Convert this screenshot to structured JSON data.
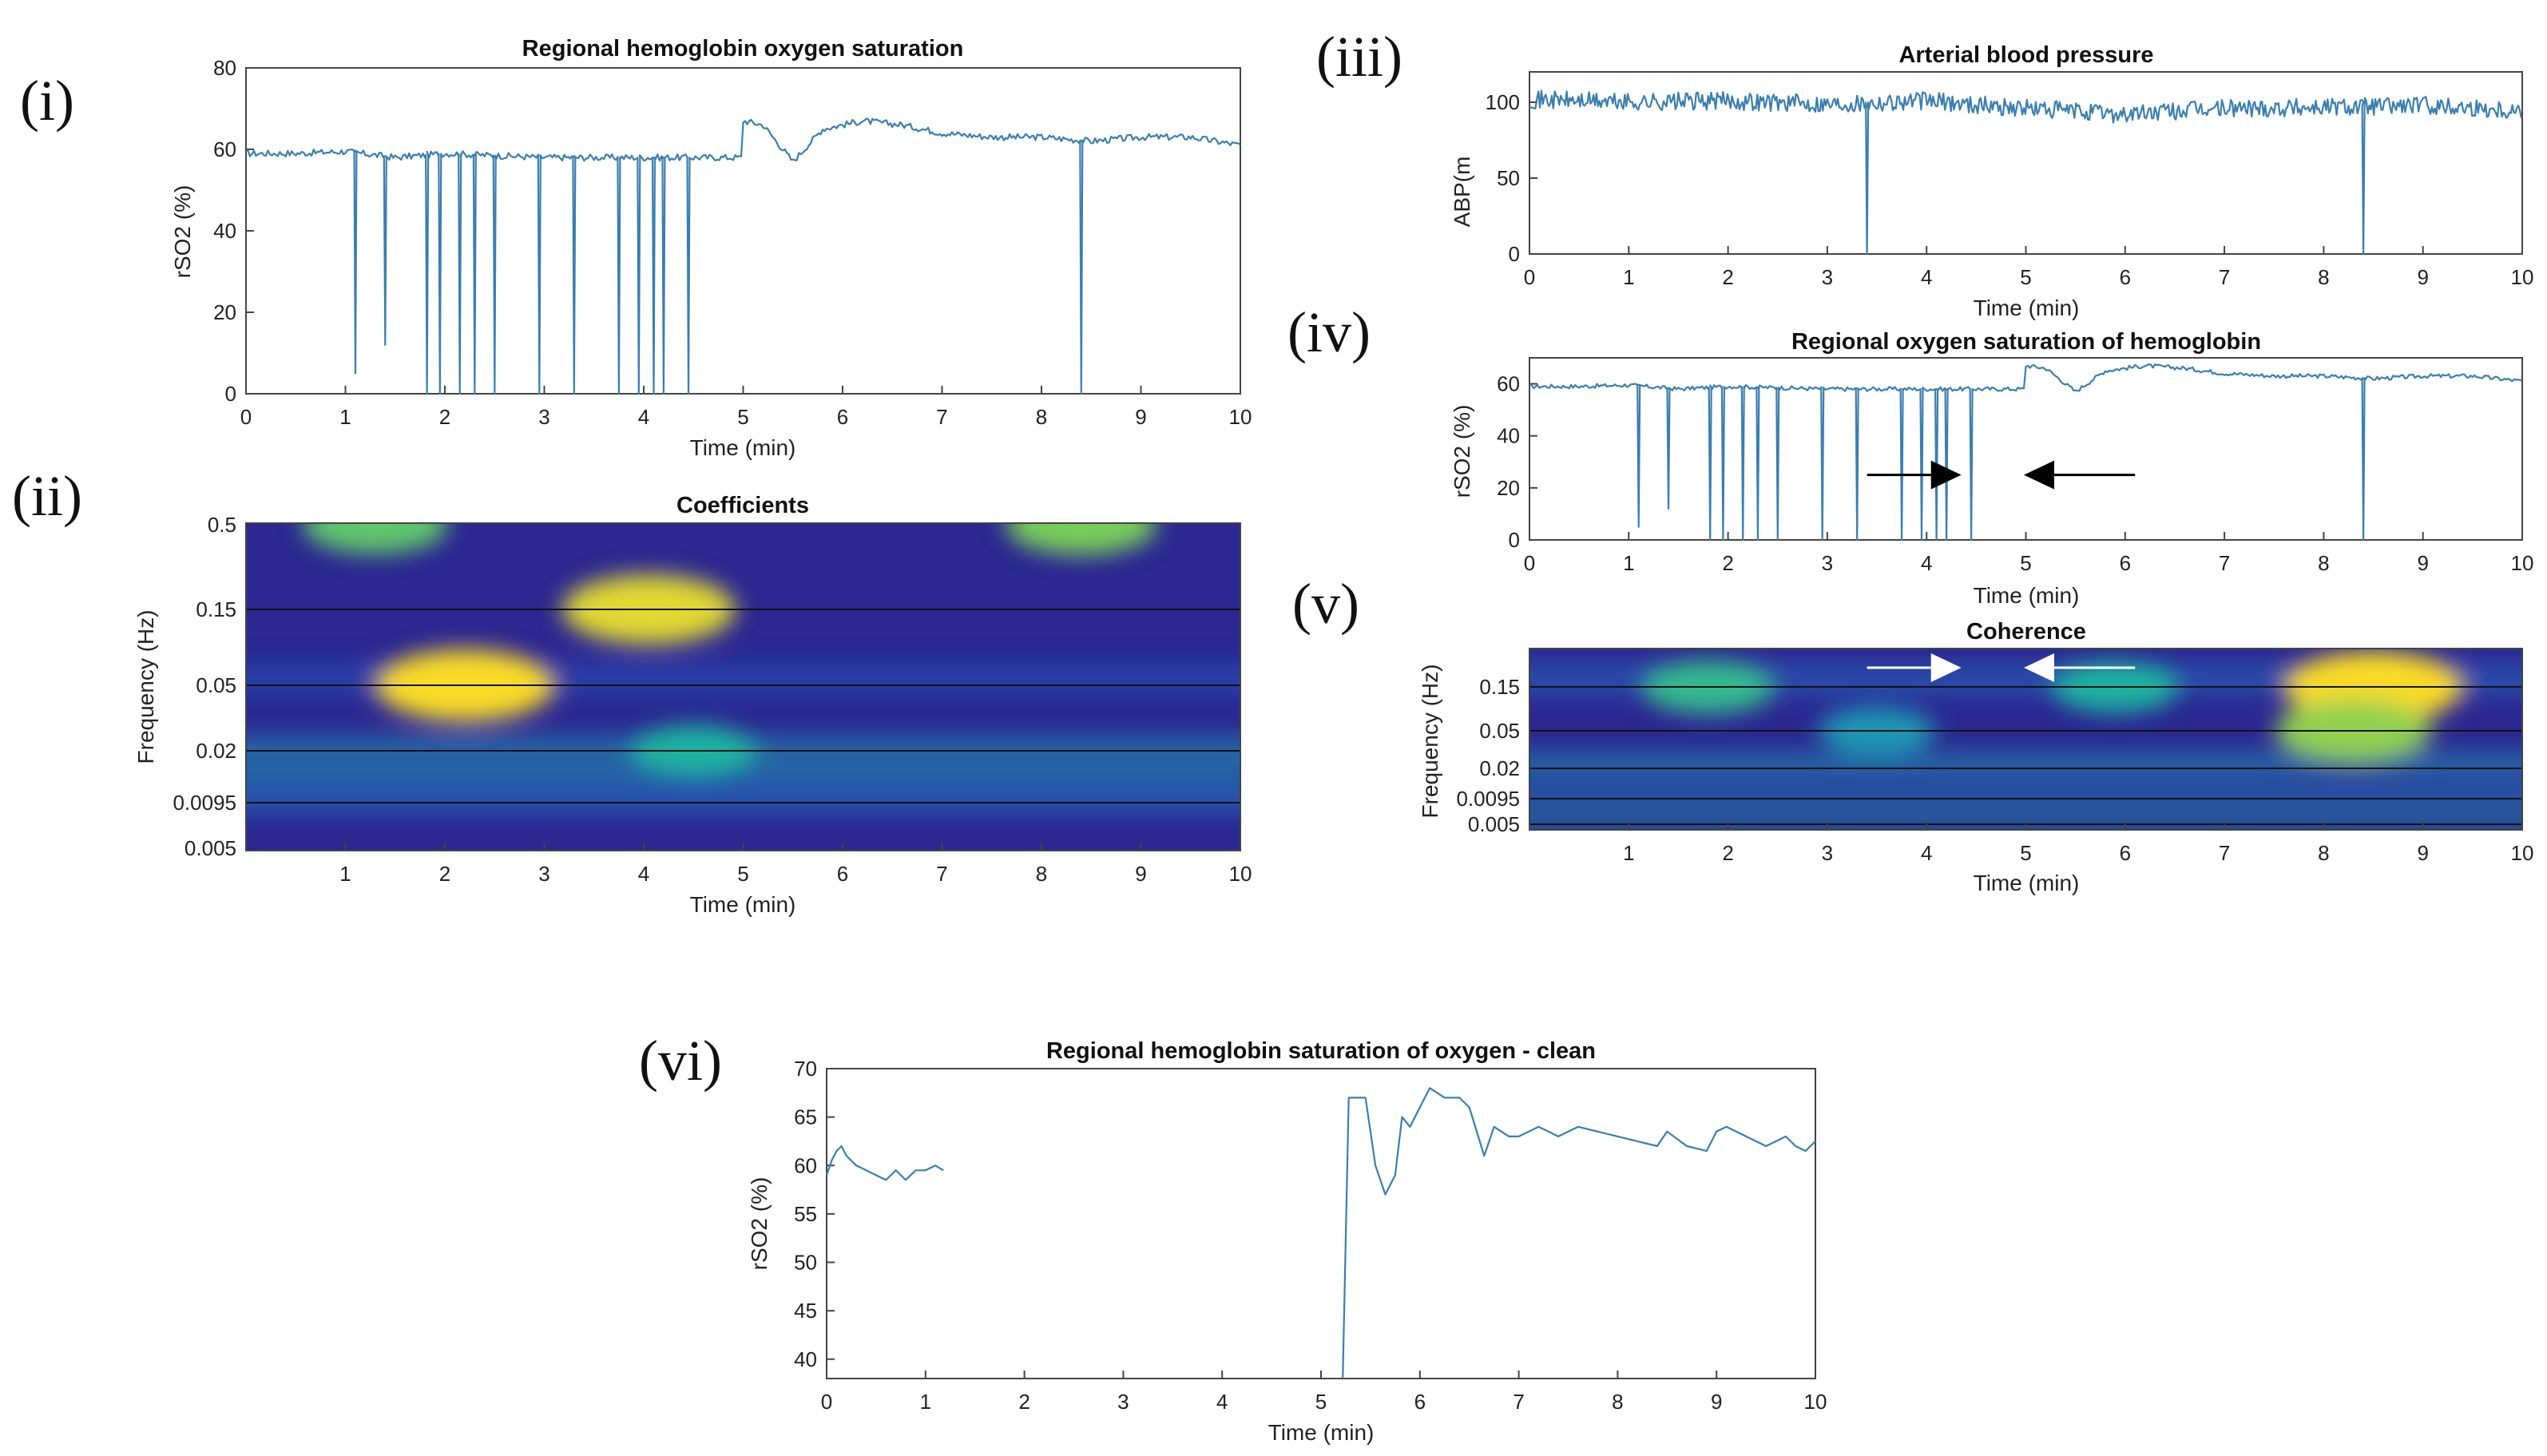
{
  "panel_labels": [
    "(i)",
    "(ii)",
    "(iii)",
    "(iv)",
    "(v)",
    "(vi)"
  ],
  "colors": {
    "line": "#3a7fb0",
    "heat_low": "#2c1e8f",
    "heat_mid": "#21b38a",
    "heat_high": "#f7dd2a"
  },
  "chart_data": [
    {
      "id": "p1",
      "type": "line",
      "title": "Regional hemoglobin oxygen saturation",
      "xlabel": "Time (min)",
      "ylabel": "rSO2 (%)",
      "xlim": [
        0,
        10
      ],
      "ylim": [
        0,
        80
      ],
      "xticks": [
        0,
        1,
        2,
        3,
        4,
        5,
        6,
        7,
        8,
        9,
        10
      ],
      "yticks": [
        0,
        20,
        40,
        60,
        80
      ],
      "series": [
        {
          "name": "rSO2",
          "baseline": [
            [
              0,
              59
            ],
            [
              0.5,
              59
            ],
            [
              1,
              59.5
            ],
            [
              1.5,
              58
            ],
            [
              2,
              59
            ],
            [
              3,
              58
            ],
            [
              4,
              58
            ],
            [
              4.5,
              58
            ],
            [
              4.98,
              58
            ],
            [
              5.0,
              67
            ],
            [
              5.2,
              66
            ],
            [
              5.4,
              60
            ],
            [
              5.5,
              57
            ],
            [
              5.8,
              65
            ],
            [
              6.2,
              67
            ],
            [
              6.6,
              66
            ],
            [
              7,
              64
            ],
            [
              7.5,
              63
            ],
            [
              8,
              63
            ],
            [
              8.5,
              62
            ],
            [
              9,
              63
            ],
            [
              9.5,
              63
            ],
            [
              10,
              61
            ]
          ],
          "dips": [
            [
              1.1,
              5
            ],
            [
              1.4,
              12
            ],
            [
              1.82,
              0
            ],
            [
              1.95,
              0
            ],
            [
              2.15,
              0
            ],
            [
              2.3,
              0
            ],
            [
              2.5,
              0
            ],
            [
              2.95,
              0
            ],
            [
              3.3,
              0
            ],
            [
              3.75,
              0
            ],
            [
              3.95,
              0
            ],
            [
              4.1,
              0
            ],
            [
              4.2,
              0
            ],
            [
              4.45,
              0
            ],
            [
              8.4,
              0
            ]
          ]
        }
      ]
    },
    {
      "id": "p2",
      "type": "heatmap",
      "title": "Coefficients",
      "xlabel": "Time (min)",
      "ylabel": "Frequency (Hz)",
      "xlim": [
        0,
        10
      ],
      "xticks": [
        1,
        2,
        3,
        4,
        5,
        6,
        7,
        8,
        9,
        10
      ],
      "yticks": [
        "0.5",
        "0.15",
        "0.05",
        "0.02",
        "0.0095",
        "0.005"
      ],
      "hot_spots": [
        {
          "t": 2.2,
          "f": "0.05",
          "v": 1.0
        },
        {
          "t": 4.05,
          "f": "0.15",
          "v": 0.95
        },
        {
          "t": 1.3,
          "f": "0.5",
          "v": 0.7
        },
        {
          "t": 8.4,
          "f": "0.5",
          "v": 0.75
        },
        {
          "t": 4.5,
          "f": "0.02",
          "v": 0.55
        }
      ]
    },
    {
      "id": "p3",
      "type": "line",
      "title": "Arterial blood pressure",
      "xlabel": "Time (min)",
      "ylabel": "ABP(m",
      "xlim": [
        0,
        10
      ],
      "ylim": [
        0,
        120
      ],
      "xticks": [
        0,
        1,
        2,
        3,
        4,
        5,
        6,
        7,
        8,
        9,
        10
      ],
      "yticks": [
        0,
        50,
        100
      ],
      "series": [
        {
          "name": "ABP",
          "baseline": [
            [
              0,
              102
            ],
            [
              1,
              100
            ],
            [
              2,
              101
            ],
            [
              3,
              99
            ],
            [
              4,
              101
            ],
            [
              5,
              96
            ],
            [
              6,
              92
            ],
            [
              7,
              96
            ],
            [
              8,
              97
            ],
            [
              9,
              98
            ],
            [
              10,
              95
            ]
          ],
          "dips": [
            [
              3.4,
              0
            ],
            [
              8.4,
              0
            ]
          ]
        }
      ]
    },
    {
      "id": "p4",
      "type": "line",
      "title": "Regional oxygen saturation of hemoglobin",
      "xlabel": "Time (min)",
      "ylabel": "rSO2 (%)",
      "xlim": [
        0,
        10
      ],
      "ylim": [
        0,
        70
      ],
      "xticks": [
        0,
        1,
        2,
        3,
        4,
        5,
        6,
        7,
        8,
        9,
        10
      ],
      "yticks": [
        0,
        20,
        40,
        60
      ],
      "series": [
        {
          "name": "rSO2",
          "baseline": [
            [
              0,
              59
            ],
            [
              0.5,
              59
            ],
            [
              1,
              59.5
            ],
            [
              1.5,
              58
            ],
            [
              2,
              59
            ],
            [
              3,
              58
            ],
            [
              4,
              58
            ],
            [
              4.5,
              58
            ],
            [
              4.98,
              58
            ],
            [
              5.0,
              67
            ],
            [
              5.2,
              66
            ],
            [
              5.4,
              60
            ],
            [
              5.5,
              57
            ],
            [
              5.8,
              65
            ],
            [
              6.2,
              67
            ],
            [
              6.6,
              66
            ],
            [
              7,
              64
            ],
            [
              7.5,
              63
            ],
            [
              8,
              63
            ],
            [
              8.5,
              62
            ],
            [
              9,
              63
            ],
            [
              9.5,
              63
            ],
            [
              10,
              61
            ]
          ],
          "dips": [
            [
              1.1,
              5
            ],
            [
              1.4,
              12
            ],
            [
              1.82,
              0
            ],
            [
              1.95,
              0
            ],
            [
              2.15,
              0
            ],
            [
              2.3,
              0
            ],
            [
              2.5,
              0
            ],
            [
              2.95,
              0
            ],
            [
              3.3,
              0
            ],
            [
              3.75,
              0
            ],
            [
              3.95,
              0
            ],
            [
              4.1,
              0
            ],
            [
              4.2,
              0
            ],
            [
              4.45,
              0
            ],
            [
              8.4,
              0
            ]
          ]
        }
      ],
      "annotations": [
        {
          "type": "arrow",
          "direction": "right",
          "tip_t": 4.35,
          "tail_t": 3.4,
          "y": 25
        },
        {
          "type": "arrow",
          "direction": "left",
          "tip_t": 4.98,
          "tail_t": 6.1,
          "y": 25
        }
      ]
    },
    {
      "id": "p5",
      "type": "heatmap",
      "title": "Coherence",
      "xlabel": "Time (min)",
      "ylabel": "Frequency (Hz)",
      "xlim": [
        0,
        10
      ],
      "xticks": [
        1,
        2,
        3,
        4,
        5,
        6,
        7,
        8,
        9,
        10
      ],
      "yticks": [
        "0.15",
        "0.05",
        "0.02",
        "0.0095",
        "0.005"
      ],
      "hot_spots": [
        {
          "t": 8.5,
          "f": "0.15",
          "v": 1.0
        },
        {
          "t": 8.3,
          "f": "0.05",
          "v": 0.8
        },
        {
          "t": 1.8,
          "f": "0.15",
          "v": 0.6
        },
        {
          "t": 5.9,
          "f": "0.15",
          "v": 0.55
        },
        {
          "t": 3.5,
          "f": "0.05",
          "v": 0.45
        }
      ],
      "annotations": [
        {
          "type": "arrow",
          "direction": "right",
          "tip_t": 4.35,
          "tail_t": 3.4
        },
        {
          "type": "arrow",
          "direction": "left",
          "tip_t": 4.98,
          "tail_t": 6.1
        }
      ]
    },
    {
      "id": "p6",
      "type": "line",
      "title": "Regional hemoglobin saturation of oxygen - clean",
      "xlabel": "Time (min)",
      "ylabel": "rSO2 (%)",
      "xlim": [
        0,
        10
      ],
      "ylim": [
        38,
        70
      ],
      "xticks": [
        0,
        1,
        2,
        3,
        4,
        5,
        6,
        7,
        8,
        9,
        10
      ],
      "yticks": [
        40,
        45,
        50,
        55,
        60,
        65,
        70
      ],
      "segments": [
        [
          [
            0,
            59
          ],
          [
            0.05,
            60.5
          ],
          [
            0.1,
            61.5
          ],
          [
            0.15,
            62
          ],
          [
            0.2,
            61
          ],
          [
            0.3,
            60
          ],
          [
            0.4,
            59.5
          ],
          [
            0.5,
            59
          ],
          [
            0.6,
            58.5
          ],
          [
            0.7,
            59.5
          ],
          [
            0.8,
            58.5
          ],
          [
            0.9,
            59.5
          ],
          [
            1.0,
            59.5
          ],
          [
            1.1,
            60
          ],
          [
            1.18,
            59.5
          ]
        ],
        [
          [
            5.22,
            38
          ],
          [
            5.28,
            67
          ],
          [
            5.45,
            67
          ],
          [
            5.55,
            60
          ],
          [
            5.65,
            57
          ],
          [
            5.75,
            59
          ],
          [
            5.82,
            65
          ],
          [
            5.9,
            64
          ],
          [
            6.0,
            66
          ],
          [
            6.1,
            68
          ],
          [
            6.25,
            67
          ],
          [
            6.4,
            67
          ],
          [
            6.5,
            66
          ],
          [
            6.65,
            61
          ],
          [
            6.75,
            64
          ],
          [
            6.9,
            63
          ],
          [
            7.0,
            63
          ],
          [
            7.2,
            64
          ],
          [
            7.4,
            63
          ],
          [
            7.6,
            64
          ],
          [
            7.8,
            63.5
          ],
          [
            8.0,
            63
          ],
          [
            8.2,
            62.5
          ],
          [
            8.4,
            62
          ],
          [
            8.5,
            63.5
          ],
          [
            8.7,
            62
          ],
          [
            8.9,
            61.5
          ],
          [
            9.0,
            63.5
          ],
          [
            9.1,
            64
          ],
          [
            9.3,
            63
          ],
          [
            9.5,
            62
          ],
          [
            9.7,
            63
          ],
          [
            9.8,
            62
          ],
          [
            9.9,
            61.5
          ],
          [
            10,
            62.5
          ]
        ]
      ]
    }
  ]
}
